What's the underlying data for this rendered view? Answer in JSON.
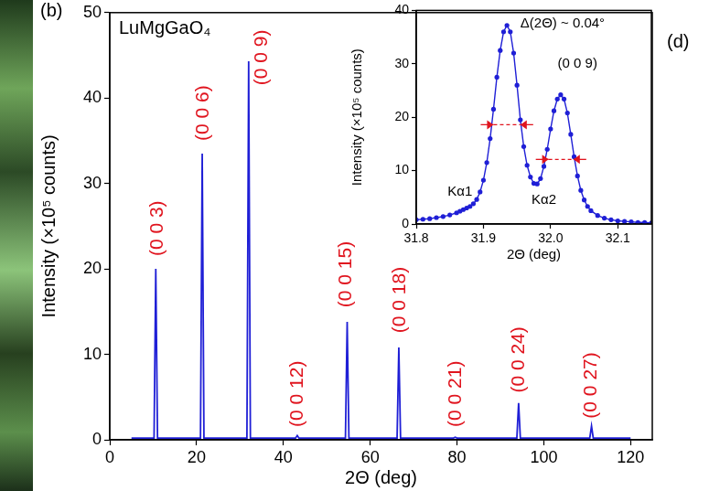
{
  "chart_data": [
    {
      "type": "line",
      "panel": "(b)",
      "x_label": "2Θ (deg)",
      "y_label": "Intensity (×10⁵ counts)",
      "xlim": [
        0,
        125
      ],
      "xticks": [
        0,
        20,
        40,
        60,
        80,
        100,
        120
      ],
      "ylim": [
        0,
        50
      ],
      "yticks": [
        0,
        10,
        20,
        30,
        40,
        50
      ],
      "grid": false,
      "legend": "upper left",
      "x": [
        5,
        10.2,
        10.6,
        11.0,
        20.9,
        21.3,
        21.7,
        31.6,
        32.0,
        32.4,
        42.8,
        43.2,
        43.6,
        54.3,
        54.7,
        55.1,
        66.2,
        66.6,
        67.0,
        79.2,
        79.6,
        80.0,
        93.8,
        94.2,
        94.6,
        110.6,
        111.0,
        111.4,
        120
      ],
      "series": [
        {
          "name": "LuMgGaO₄",
          "color": "#1f1fd6",
          "values": [
            0.2,
            0.2,
            20,
            0.2,
            0.2,
            33.5,
            0.2,
            0.2,
            44.3,
            0.2,
            0.2,
            0.5,
            0.2,
            0.2,
            13.8,
            0.2,
            0.2,
            10.8,
            0.2,
            0.2,
            0.3,
            0.2,
            0.2,
            4.3,
            0.2,
            0.2,
            1.6,
            0.2,
            0.2
          ]
        }
      ],
      "peak_labels": [
        {
          "text": "(0 0 3)",
          "x": 10.9,
          "y": 21.5
        },
        {
          "text": "(0 0 6)",
          "x": 21.6,
          "y": 35
        },
        {
          "text": "(0 0 9)",
          "x": 35,
          "y": 41.5
        },
        {
          "text": "(0 0 12)",
          "x": 43.3,
          "y": 1.5
        },
        {
          "text": "(0 0 15)",
          "x": 54.5,
          "y": 15.5
        },
        {
          "text": "(0 0 18)",
          "x": 66.8,
          "y": 12.5
        },
        {
          "text": "(0 0 21)",
          "x": 79.8,
          "y": 1.5
        },
        {
          "text": "(0 0 24)",
          "x": 94.3,
          "y": 5.5
        },
        {
          "text": "(0 0 27)",
          "x": 111,
          "y": 2.5
        }
      ]
    },
    {
      "type": "line",
      "panel": "(d)",
      "x_label": "2Θ (deg)",
      "y_label": "Intensity (×10⁵ counts)",
      "xlim": [
        31.8,
        32.15
      ],
      "xticks": [
        31.8,
        31.9,
        {
          "value": 32,
          "label": "32.0"
        },
        32.1
      ],
      "ylim": [
        0,
        40
      ],
      "yticks": [
        0,
        10,
        20,
        30,
        40
      ],
      "grid": false,
      "x": [
        31.8,
        31.81,
        31.82,
        31.83,
        31.84,
        31.85,
        31.86,
        31.865,
        31.87,
        31.875,
        31.88,
        31.885,
        31.89,
        31.895,
        31.9,
        31.905,
        31.91,
        31.915,
        31.92,
        31.925,
        31.93,
        31.935,
        31.94,
        31.945,
        31.95,
        31.955,
        31.96,
        31.965,
        31.97,
        31.975,
        31.98,
        31.985,
        31.99,
        31.995,
        32.0,
        32.005,
        32.01,
        32.015,
        32.02,
        32.025,
        32.03,
        32.035,
        32.04,
        32.045,
        32.05,
        32.055,
        32.06,
        32.07,
        32.08,
        32.09,
        32.1,
        32.11,
        32.12,
        32.13,
        32.14,
        32.15
      ],
      "series": [
        {
          "color": "#1f1fd6",
          "marker": "circle",
          "line_style": "solid",
          "values": [
            0.8,
            0.9,
            1.0,
            1.2,
            1.4,
            1.7,
            2.1,
            2.4,
            2.7,
            3.0,
            3.3,
            3.8,
            4.6,
            6.0,
            8.2,
            11.5,
            16.0,
            21.5,
            27.5,
            32.5,
            36.0,
            37.2,
            36.0,
            32.0,
            26.0,
            19.5,
            14.5,
            11.0,
            8.8,
            7.6,
            7.5,
            8.5,
            10.8,
            14.0,
            17.8,
            21.2,
            23.4,
            24.2,
            23.4,
            20.8,
            16.8,
            12.6,
            9.0,
            6.3,
            4.5,
            3.3,
            2.5,
            1.6,
            1.1,
            0.8,
            0.6,
            0.5,
            0.4,
            0.3,
            0.3,
            0.2
          ]
        }
      ],
      "annotations": [
        {
          "text": "Δ(2Θ) ~ 0.04°",
          "x": 31.955,
          "y": 37.5
        },
        {
          "text": "(0 0 9)",
          "x": 32.04,
          "y": 30
        },
        {
          "text": "Kα1",
          "x": 31.865,
          "y": 6
        },
        {
          "text": "Kα2",
          "x": 31.99,
          "y": 4.5
        }
      ],
      "fwhm_markers": [
        {
          "y": 18.6,
          "x": [
            31.915,
            31.955
          ]
        },
        {
          "y": 12.1,
          "x": [
            31.997,
            32.034
          ]
        }
      ]
    }
  ]
}
